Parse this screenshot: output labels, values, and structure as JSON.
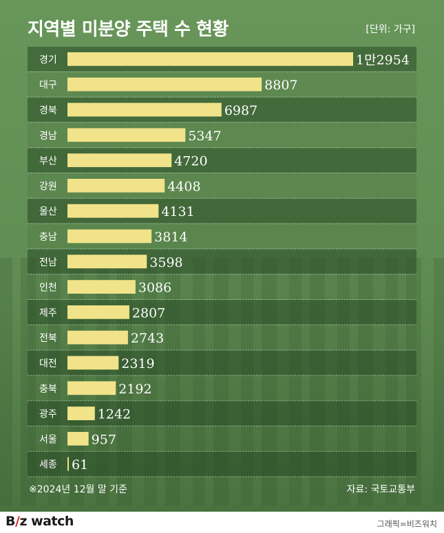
{
  "title": "지역별 미분양 주택 수 현황",
  "unit": "[단위: 가구]",
  "footnote": "※2024년 12월 말 기준",
  "source": "자료: 국토교통부",
  "logo": {
    "part1": "B",
    "part2": "/",
    "part3": "z",
    "part4": " watch"
  },
  "credit": "그래픽=비즈워치",
  "colors": {
    "bar": "#f1e38a",
    "row_dark": "rgba(40,70,35,0.55)",
    "text": "#ffffff"
  },
  "chart_data": {
    "type": "bar",
    "orientation": "horizontal",
    "categories": [
      "경기",
      "대구",
      "경북",
      "경남",
      "부산",
      "강원",
      "울산",
      "충남",
      "전남",
      "인천",
      "제주",
      "전북",
      "대전",
      "충북",
      "광주",
      "서울",
      "세종"
    ],
    "values": [
      12954,
      8807,
      6987,
      5347,
      4720,
      4408,
      4131,
      3814,
      3598,
      3086,
      2807,
      2743,
      2319,
      2192,
      1242,
      957,
      61
    ],
    "value_labels": [
      "1만2954",
      "8807",
      "6987",
      "5347",
      "4720",
      "4408",
      "4131",
      "3814",
      "3598",
      "3086",
      "2807",
      "2743",
      "2319",
      "2192",
      "1242",
      "957",
      "61"
    ],
    "title": "지역별 미분양 주택 수 현황",
    "xlim": [
      0,
      12954
    ]
  }
}
